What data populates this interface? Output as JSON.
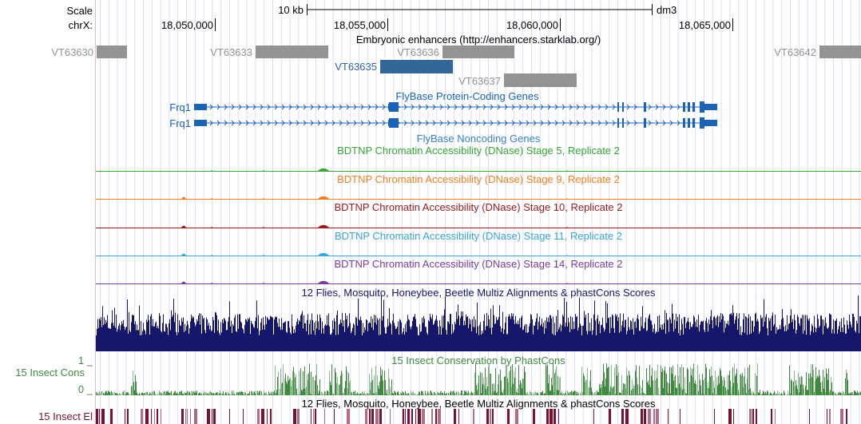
{
  "ruler": {
    "scale_label": "Scale",
    "scale_bar_label": "10 kb",
    "assembly": "dm3",
    "chrom_label": "chrX:",
    "ticks": [
      "18,050,000",
      "18,055,000",
      "18,060,000",
      "18,065,000"
    ]
  },
  "tracks": {
    "enhancers": {
      "title": "Embryonic enhancers (http://enhancers.starklab.org/)",
      "items": [
        {
          "name": "VT63630",
          "color": "#939393"
        },
        {
          "name": "VT63633",
          "color": "#939393"
        },
        {
          "name": "VT63636",
          "color": "#939393"
        },
        {
          "name": "VT63635",
          "color": "#336699"
        },
        {
          "name": "VT63637",
          "color": "#939393"
        },
        {
          "name": "VT63642",
          "color": "#939393"
        }
      ]
    },
    "protein_genes": {
      "title": "FlyBase Protein-Coding Genes",
      "color": "#1a63b5",
      "genes": [
        "Frq1",
        "Frq1"
      ]
    },
    "noncoding_genes": {
      "title": "FlyBase Noncoding Genes",
      "color": "#3b82c8"
    },
    "dnase": [
      {
        "title": "BDTNP Chromatin Accessibility (DNase) Stage 5, Replicate 2",
        "color": "#35a835"
      },
      {
        "title": "BDTNP Chromatin Accessibility (DNase) Stage 9, Replicate 2",
        "color": "#f07f22"
      },
      {
        "title": "BDTNP Chromatin Accessibility (DNase) Stage 10, Replicate 2",
        "color": "#9b1b1b"
      },
      {
        "title": "BDTNP Chromatin Accessibility (DNase) Stage 11, Replicate 2",
        "color": "#3aa5dc"
      },
      {
        "title": "BDTNP Chromatin Accessibility (DNase) Stage 14, Replicate 2",
        "color": "#7a3d9e"
      }
    ],
    "multiz": {
      "title": "12 Flies, Mosquito, Honeybee, Beetle Multiz Alignments & phastCons Scores",
      "color": "#16166a"
    },
    "phastcons": {
      "title": "15 Insect Conservation by PhastCons",
      "side_label": "15 Insect Cons",
      "ymax": "1 _",
      "ymin": "0 _",
      "color": "#3f8a3f"
    },
    "elements": {
      "title": "12 Flies, Mosquito, Honeybee, Beetle Multiz Alignments & phastCons Scores",
      "side_label": "15 Insect El",
      "color": "#7b1030"
    }
  }
}
